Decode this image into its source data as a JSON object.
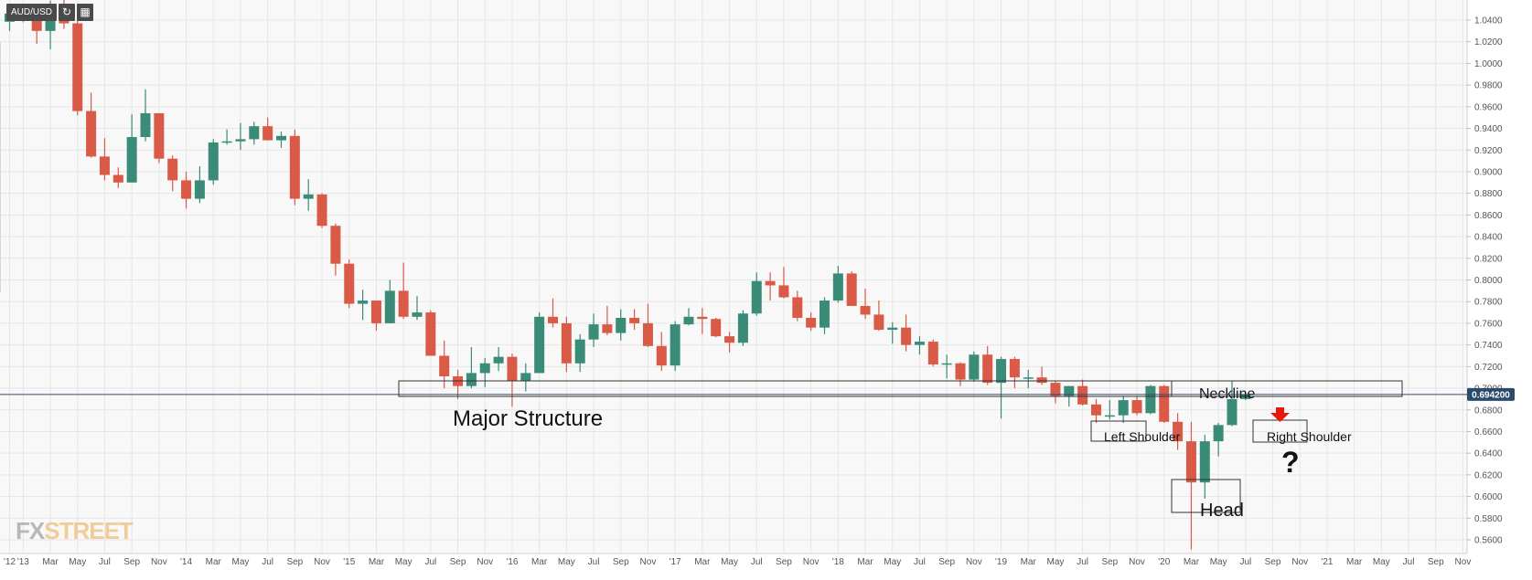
{
  "toolbar": {
    "symbol": "AUD/USD",
    "refresh_icon": "refresh-icon",
    "calendar_icon": "calendar-icon"
  },
  "watermark": {
    "fx": "FX",
    "street": "STREET"
  },
  "colors": {
    "bull": "#3a8b77",
    "bear": "#d95a47",
    "background": "#f8f8f8",
    "grid": "#e6e6e6",
    "axis_text": "#555555",
    "price_line": "#2c4a6e",
    "arrow": "#e8170b",
    "watermark_fx": "#b7b7b7",
    "watermark_street": "#f1cc99"
  },
  "chart_data": {
    "type": "candlestick",
    "title": "AUD/USD",
    "timeframe": "Monthly",
    "y_ticks": [
      "0.5600",
      "0.5800",
      "0.6000",
      "0.6200",
      "0.6400",
      "0.6600",
      "0.6800",
      "0.7000",
      "0.7200",
      "0.7400",
      "0.7600",
      "0.7800",
      "0.8000",
      "0.8200",
      "0.8400",
      "0.8600",
      "0.8800",
      "0.9000",
      "0.9200",
      "0.9400",
      "0.9600",
      "0.9800",
      "1.0000",
      "1.0200",
      "1.0400"
    ],
    "ylim": [
      0.55,
      1.06
    ],
    "x_ticks": [
      "'12",
      "'13",
      "Mar",
      "May",
      "Jul",
      "Sep",
      "Nov",
      "'14",
      "Mar",
      "May",
      "Jul",
      "Sep",
      "Nov",
      "'15",
      "Mar",
      "May",
      "Jul",
      "Sep",
      "Nov",
      "'16",
      "Mar",
      "May",
      "Jul",
      "Sep",
      "Nov",
      "'17",
      "Mar",
      "May",
      "Jul",
      "Sep",
      "Nov",
      "'18",
      "Mar",
      "May",
      "Jul",
      "Sep",
      "Nov",
      "'19",
      "Mar",
      "May",
      "Jul",
      "Sep",
      "Nov",
      "'20",
      "Mar",
      "May",
      "Jul",
      "Sep",
      "Nov",
      "'21",
      "Mar",
      "May",
      "Jul",
      "Sep",
      "Nov"
    ],
    "x_tick_months": [
      "2012-12",
      "2013-01",
      "2013-03",
      "2013-05",
      "2013-07",
      "2013-09",
      "2013-11",
      "2014-01",
      "2014-03",
      "2014-05",
      "2014-07",
      "2014-09",
      "2014-11",
      "2015-01",
      "2015-03",
      "2015-05",
      "2015-07",
      "2015-09",
      "2015-11",
      "2016-01",
      "2016-03",
      "2016-05",
      "2016-07",
      "2016-09",
      "2016-11",
      "2017-01",
      "2017-03",
      "2017-05",
      "2017-07",
      "2017-09",
      "2017-11",
      "2018-01",
      "2018-03",
      "2018-05",
      "2018-07",
      "2018-09",
      "2018-11",
      "2019-01",
      "2019-03",
      "2019-05",
      "2019-07",
      "2019-09",
      "2019-11",
      "2020-01",
      "2020-03",
      "2020-05",
      "2020-07",
      "2020-09",
      "2020-11",
      "2021-01",
      "2021-03",
      "2021-05",
      "2021-07",
      "2021-09",
      "2021-11"
    ],
    "current_price": "0.694200",
    "candles": [
      {
        "date": "2012-12",
        "open": 1.0385,
        "high": 1.05,
        "low": 1.03,
        "close": 1.046
      },
      {
        "date": "2013-01",
        "open": 1.046,
        "high": 1.05,
        "low": 1.038,
        "close": 1.042
      },
      {
        "date": "2013-02",
        "open": 1.042,
        "high": 1.05,
        "low": 1.018,
        "close": 1.03
      },
      {
        "date": "2013-03",
        "open": 1.03,
        "high": 1.058,
        "low": 1.013,
        "close": 1.042
      },
      {
        "date": "2013-04",
        "open": 1.042,
        "high": 1.06,
        "low": 1.032,
        "close": 1.037
      },
      {
        "date": "2013-05",
        "open": 1.037,
        "high": 1.04,
        "low": 0.952,
        "close": 0.956
      },
      {
        "date": "2013-06",
        "open": 0.956,
        "high": 0.973,
        "low": 0.913,
        "close": 0.914
      },
      {
        "date": "2013-07",
        "open": 0.914,
        "high": 0.931,
        "low": 0.892,
        "close": 0.897
      },
      {
        "date": "2013-08",
        "open": 0.897,
        "high": 0.904,
        "low": 0.885,
        "close": 0.89
      },
      {
        "date": "2013-09",
        "open": 0.89,
        "high": 0.953,
        "low": 0.89,
        "close": 0.932
      },
      {
        "date": "2013-10",
        "open": 0.932,
        "high": 0.976,
        "low": 0.928,
        "close": 0.954
      },
      {
        "date": "2013-11",
        "open": 0.954,
        "high": 0.952,
        "low": 0.908,
        "close": 0.912
      },
      {
        "date": "2013-12",
        "open": 0.912,
        "high": 0.915,
        "low": 0.882,
        "close": 0.892
      },
      {
        "date": "2014-01",
        "open": 0.892,
        "high": 0.9,
        "low": 0.866,
        "close": 0.875
      },
      {
        "date": "2014-02",
        "open": 0.875,
        "high": 0.905,
        "low": 0.871,
        "close": 0.892
      },
      {
        "date": "2014-03",
        "open": 0.892,
        "high": 0.93,
        "low": 0.888,
        "close": 0.927
      },
      {
        "date": "2014-04",
        "open": 0.927,
        "high": 0.939,
        "low": 0.925,
        "close": 0.928
      },
      {
        "date": "2014-05",
        "open": 0.928,
        "high": 0.945,
        "low": 0.92,
        "close": 0.93
      },
      {
        "date": "2014-06",
        "open": 0.93,
        "high": 0.946,
        "low": 0.925,
        "close": 0.942
      },
      {
        "date": "2014-07",
        "open": 0.942,
        "high": 0.95,
        "low": 0.929,
        "close": 0.929
      },
      {
        "date": "2014-08",
        "open": 0.929,
        "high": 0.937,
        "low": 0.922,
        "close": 0.933
      },
      {
        "date": "2014-09",
        "open": 0.933,
        "high": 0.939,
        "low": 0.869,
        "close": 0.875
      },
      {
        "date": "2014-10",
        "open": 0.875,
        "high": 0.893,
        "low": 0.864,
        "close": 0.879
      },
      {
        "date": "2014-11",
        "open": 0.879,
        "high": 0.88,
        "low": 0.848,
        "close": 0.85
      },
      {
        "date": "2014-12",
        "open": 0.85,
        "high": 0.852,
        "low": 0.804,
        "close": 0.815
      },
      {
        "date": "2015-01",
        "open": 0.815,
        "high": 0.819,
        "low": 0.774,
        "close": 0.778
      },
      {
        "date": "2015-02",
        "open": 0.778,
        "high": 0.791,
        "low": 0.763,
        "close": 0.781
      },
      {
        "date": "2015-03",
        "open": 0.781,
        "high": 0.781,
        "low": 0.753,
        "close": 0.76
      },
      {
        "date": "2015-04",
        "open": 0.76,
        "high": 0.8,
        "low": 0.76,
        "close": 0.79
      },
      {
        "date": "2015-05",
        "open": 0.79,
        "high": 0.816,
        "low": 0.764,
        "close": 0.766
      },
      {
        "date": "2015-06",
        "open": 0.766,
        "high": 0.785,
        "low": 0.763,
        "close": 0.77
      },
      {
        "date": "2015-07",
        "open": 0.77,
        "high": 0.772,
        "low": 0.73,
        "close": 0.73
      },
      {
        "date": "2015-08",
        "open": 0.73,
        "high": 0.744,
        "low": 0.7,
        "close": 0.711
      },
      {
        "date": "2015-09",
        "open": 0.711,
        "high": 0.717,
        "low": 0.69,
        "close": 0.702
      },
      {
        "date": "2015-10",
        "open": 0.702,
        "high": 0.738,
        "low": 0.7,
        "close": 0.714
      },
      {
        "date": "2015-11",
        "open": 0.714,
        "high": 0.728,
        "low": 0.701,
        "close": 0.723
      },
      {
        "date": "2015-12",
        "open": 0.723,
        "high": 0.738,
        "low": 0.716,
        "close": 0.729
      },
      {
        "date": "2016-01",
        "open": 0.729,
        "high": 0.732,
        "low": 0.683,
        "close": 0.707
      },
      {
        "date": "2016-02",
        "open": 0.707,
        "high": 0.723,
        "low": 0.697,
        "close": 0.714
      },
      {
        "date": "2016-03",
        "open": 0.714,
        "high": 0.77,
        "low": 0.714,
        "close": 0.766
      },
      {
        "date": "2016-04",
        "open": 0.766,
        "high": 0.783,
        "low": 0.756,
        "close": 0.76
      },
      {
        "date": "2016-05",
        "open": 0.76,
        "high": 0.766,
        "low": 0.715,
        "close": 0.723
      },
      {
        "date": "2016-06",
        "open": 0.723,
        "high": 0.75,
        "low": 0.715,
        "close": 0.745
      },
      {
        "date": "2016-07",
        "open": 0.745,
        "high": 0.769,
        "low": 0.738,
        "close": 0.759
      },
      {
        "date": "2016-08",
        "open": 0.759,
        "high": 0.776,
        "low": 0.749,
        "close": 0.751
      },
      {
        "date": "2016-09",
        "open": 0.751,
        "high": 0.773,
        "low": 0.744,
        "close": 0.765
      },
      {
        "date": "2016-10",
        "open": 0.765,
        "high": 0.773,
        "low": 0.754,
        "close": 0.76
      },
      {
        "date": "2016-11",
        "open": 0.76,
        "high": 0.778,
        "low": 0.738,
        "close": 0.739
      },
      {
        "date": "2016-12",
        "open": 0.739,
        "high": 0.752,
        "low": 0.716,
        "close": 0.721
      },
      {
        "date": "2017-01",
        "open": 0.721,
        "high": 0.762,
        "low": 0.716,
        "close": 0.759
      },
      {
        "date": "2017-02",
        "open": 0.759,
        "high": 0.774,
        "low": 0.758,
        "close": 0.766
      },
      {
        "date": "2017-03",
        "open": 0.766,
        "high": 0.774,
        "low": 0.75,
        "close": 0.764
      },
      {
        "date": "2017-04",
        "open": 0.764,
        "high": 0.765,
        "low": 0.747,
        "close": 0.748
      },
      {
        "date": "2017-05",
        "open": 0.748,
        "high": 0.752,
        "low": 0.733,
        "close": 0.742
      },
      {
        "date": "2017-06",
        "open": 0.742,
        "high": 0.772,
        "low": 0.739,
        "close": 0.769
      },
      {
        "date": "2017-07",
        "open": 0.769,
        "high": 0.807,
        "low": 0.767,
        "close": 0.799
      },
      {
        "date": "2017-08",
        "open": 0.799,
        "high": 0.807,
        "low": 0.781,
        "close": 0.795
      },
      {
        "date": "2017-09",
        "open": 0.795,
        "high": 0.812,
        "low": 0.783,
        "close": 0.784
      },
      {
        "date": "2017-10",
        "open": 0.784,
        "high": 0.79,
        "low": 0.762,
        "close": 0.765
      },
      {
        "date": "2017-11",
        "open": 0.765,
        "high": 0.77,
        "low": 0.753,
        "close": 0.756
      },
      {
        "date": "2017-12",
        "open": 0.756,
        "high": 0.784,
        "low": 0.75,
        "close": 0.781
      },
      {
        "date": "2018-01",
        "open": 0.781,
        "high": 0.813,
        "low": 0.779,
        "close": 0.806
      },
      {
        "date": "2018-02",
        "open": 0.806,
        "high": 0.808,
        "low": 0.776,
        "close": 0.776
      },
      {
        "date": "2018-03",
        "open": 0.776,
        "high": 0.792,
        "low": 0.764,
        "close": 0.768
      },
      {
        "date": "2018-04",
        "open": 0.768,
        "high": 0.781,
        "low": 0.753,
        "close": 0.754
      },
      {
        "date": "2018-05",
        "open": 0.754,
        "high": 0.761,
        "low": 0.741,
        "close": 0.756
      },
      {
        "date": "2018-06",
        "open": 0.756,
        "high": 0.768,
        "low": 0.734,
        "close": 0.74
      },
      {
        "date": "2018-07",
        "open": 0.74,
        "high": 0.748,
        "low": 0.731,
        "close": 0.743
      },
      {
        "date": "2018-08",
        "open": 0.743,
        "high": 0.745,
        "low": 0.72,
        "close": 0.722
      },
      {
        "date": "2018-09",
        "open": 0.722,
        "high": 0.731,
        "low": 0.709,
        "close": 0.723
      },
      {
        "date": "2018-10",
        "open": 0.723,
        "high": 0.724,
        "low": 0.702,
        "close": 0.708
      },
      {
        "date": "2018-11",
        "open": 0.708,
        "high": 0.734,
        "low": 0.706,
        "close": 0.731
      },
      {
        "date": "2018-12",
        "open": 0.731,
        "high": 0.739,
        "low": 0.703,
        "close": 0.705
      },
      {
        "date": "2019-01",
        "open": 0.705,
        "high": 0.729,
        "low": 0.672,
        "close": 0.727
      },
      {
        "date": "2019-02",
        "open": 0.727,
        "high": 0.729,
        "low": 0.7,
        "close": 0.71
      },
      {
        "date": "2019-03",
        "open": 0.71,
        "high": 0.717,
        "low": 0.7,
        "close": 0.71
      },
      {
        "date": "2019-04",
        "open": 0.71,
        "high": 0.72,
        "low": 0.703,
        "close": 0.705
      },
      {
        "date": "2019-05",
        "open": 0.705,
        "high": 0.707,
        "low": 0.686,
        "close": 0.693
      },
      {
        "date": "2019-06",
        "open": 0.693,
        "high": 0.702,
        "low": 0.683,
        "close": 0.702
      },
      {
        "date": "2019-07",
        "open": 0.702,
        "high": 0.708,
        "low": 0.684,
        "close": 0.685
      },
      {
        "date": "2019-08",
        "open": 0.685,
        "high": 0.69,
        "low": 0.668,
        "close": 0.675
      },
      {
        "date": "2019-09",
        "open": 0.675,
        "high": 0.689,
        "low": 0.671,
        "close": 0.675
      },
      {
        "date": "2019-10",
        "open": 0.675,
        "high": 0.693,
        "low": 0.668,
        "close": 0.689
      },
      {
        "date": "2019-11",
        "open": 0.689,
        "high": 0.693,
        "low": 0.675,
        "close": 0.677
      },
      {
        "date": "2019-12",
        "open": 0.677,
        "high": 0.703,
        "low": 0.676,
        "close": 0.702
      },
      {
        "date": "2020-01",
        "open": 0.702,
        "high": 0.703,
        "low": 0.668,
        "close": 0.669
      },
      {
        "date": "2020-02",
        "open": 0.669,
        "high": 0.677,
        "low": 0.643,
        "close": 0.651
      },
      {
        "date": "2020-03",
        "open": 0.651,
        "high": 0.669,
        "low": 0.551,
        "close": 0.613
      },
      {
        "date": "2020-04",
        "open": 0.613,
        "high": 0.657,
        "low": 0.598,
        "close": 0.651
      },
      {
        "date": "2020-05",
        "open": 0.651,
        "high": 0.668,
        "low": 0.637,
        "close": 0.666
      },
      {
        "date": "2020-06",
        "open": 0.666,
        "high": 0.707,
        "low": 0.665,
        "close": 0.69
      },
      {
        "date": "2020-07",
        "open": 0.69,
        "high": 0.696,
        "low": 0.689,
        "close": 0.6942
      }
    ]
  },
  "annotations": {
    "major_structure": "Major Structure",
    "neckline": "Neckline",
    "left_shoulder": "Left  Shoulder",
    "head": "Head",
    "right_shoulder": "Right Shoulder",
    "question": "?"
  }
}
